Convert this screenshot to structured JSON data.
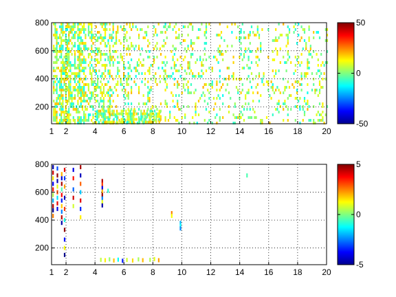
{
  "chart_data": [
    {
      "type": "heatmap",
      "title": "",
      "xlabel": "",
      "ylabel": "",
      "xlim": [
        1,
        20
      ],
      "ylim": [
        80,
        800
      ],
      "xticks": [
        1,
        2,
        4,
        6,
        8,
        10,
        12,
        14,
        16,
        18,
        20
      ],
      "yticks": [
        200,
        400,
        600,
        800
      ],
      "grid": true,
      "colormap": "jet",
      "colorbar": {
        "min": -50,
        "max": 50,
        "ticks": [
          -50,
          0,
          50
        ]
      },
      "description_of_content": "dense sparse field of near-zero values (cyan/green/yellow) over the whole range, densest at low x",
      "clusters": [
        {
          "x": [
            1.1,
            3.3
          ],
          "y": [
            85,
            800
          ],
          "density": 0.75
        },
        {
          "x": [
            3.3,
            5.0
          ],
          "y": [
            85,
            800
          ],
          "density": 0.55
        },
        {
          "x": [
            5.0,
            8.5
          ],
          "y": [
            85,
            800
          ],
          "density": 0.35
        },
        {
          "x": [
            4.0,
            8.5
          ],
          "y": [
            85,
            180
          ],
          "density": 0.8
        },
        {
          "x": [
            8.5,
            20.0
          ],
          "y": [
            85,
            800
          ],
          "density": 0.22
        }
      ],
      "value_range_shown": [
        -12,
        20
      ]
    },
    {
      "type": "heatmap",
      "title": "",
      "xlabel": "",
      "ylabel": "",
      "xlim": [
        1,
        20
      ],
      "ylim": [
        80,
        800
      ],
      "xticks": [
        1,
        2,
        4,
        6,
        8,
        10,
        12,
        14,
        16,
        18,
        20
      ],
      "yticks": [
        200,
        400,
        600,
        800
      ],
      "grid": true,
      "colormap": "jet",
      "colorbar": {
        "min": -5,
        "max": 5,
        "ticks": [
          -5,
          0,
          5
        ]
      },
      "points": [
        {
          "x": 1.1,
          "y": 780,
          "v": -4.5
        },
        {
          "x": 1.1,
          "y": 740,
          "v": 4.2
        },
        {
          "x": 1.1,
          "y": 700,
          "v": 1.5
        },
        {
          "x": 1.1,
          "y": 660,
          "v": -3.8
        },
        {
          "x": 1.1,
          "y": 620,
          "v": 3.5
        },
        {
          "x": 1.1,
          "y": 580,
          "v": 0.5
        },
        {
          "x": 1.1,
          "y": 540,
          "v": -2.0
        },
        {
          "x": 1.1,
          "y": 500,
          "v": 4.5
        },
        {
          "x": 1.1,
          "y": 470,
          "v": -4.8
        },
        {
          "x": 1.1,
          "y": 430,
          "v": 2.5
        },
        {
          "x": 1.4,
          "y": 770,
          "v": -3.0
        },
        {
          "x": 1.4,
          "y": 720,
          "v": 4.8
        },
        {
          "x": 1.4,
          "y": 680,
          "v": -4.5
        },
        {
          "x": 1.4,
          "y": 640,
          "v": 1.0
        },
        {
          "x": 1.4,
          "y": 600,
          "v": 3.0
        },
        {
          "x": 1.4,
          "y": 560,
          "v": -1.5
        },
        {
          "x": 1.4,
          "y": 520,
          "v": 4.0
        },
        {
          "x": 1.4,
          "y": 480,
          "v": -4.0
        },
        {
          "x": 1.7,
          "y": 730,
          "v": 2.0
        },
        {
          "x": 1.7,
          "y": 700,
          "v": -4.2
        },
        {
          "x": 1.7,
          "y": 660,
          "v": 4.6
        },
        {
          "x": 1.7,
          "y": 620,
          "v": -0.5
        },
        {
          "x": 1.7,
          "y": 580,
          "v": 3.8
        },
        {
          "x": 1.7,
          "y": 540,
          "v": -3.5
        },
        {
          "x": 1.7,
          "y": 500,
          "v": 1.8
        },
        {
          "x": 1.7,
          "y": 460,
          "v": -2.5
        },
        {
          "x": 1.7,
          "y": 420,
          "v": 4.4
        },
        {
          "x": 1.7,
          "y": 380,
          "v": -4.6
        },
        {
          "x": 1.9,
          "y": 760,
          "v": 4.0
        },
        {
          "x": 1.9,
          "y": 700,
          "v": -3.2
        },
        {
          "x": 1.9,
          "y": 640,
          "v": 2.2
        },
        {
          "x": 1.9,
          "y": 560,
          "v": -4.4
        },
        {
          "x": 1.9,
          "y": 480,
          "v": 3.2
        },
        {
          "x": 1.9,
          "y": 400,
          "v": -1.0
        },
        {
          "x": 1.9,
          "y": 330,
          "v": 4.8
        },
        {
          "x": 1.9,
          "y": 260,
          "v": -3.6
        },
        {
          "x": 1.9,
          "y": 200,
          "v": 1.2
        },
        {
          "x": 1.9,
          "y": 150,
          "v": -4.9
        },
        {
          "x": 2.5,
          "y": 760,
          "v": -4.0
        },
        {
          "x": 2.5,
          "y": 700,
          "v": 3.6
        },
        {
          "x": 2.5,
          "y": 620,
          "v": -2.8
        },
        {
          "x": 2.5,
          "y": 560,
          "v": 4.2
        },
        {
          "x": 2.5,
          "y": 500,
          "v": 0.8
        },
        {
          "x": 3.0,
          "y": 780,
          "v": 4.6
        },
        {
          "x": 3.0,
          "y": 720,
          "v": -4.4
        },
        {
          "x": 3.0,
          "y": 660,
          "v": 2.8
        },
        {
          "x": 3.0,
          "y": 600,
          "v": -1.8
        },
        {
          "x": 3.0,
          "y": 540,
          "v": 4.0
        },
        {
          "x": 3.0,
          "y": 480,
          "v": -3.4
        },
        {
          "x": 3.0,
          "y": 420,
          "v": 1.4
        },
        {
          "x": 4.5,
          "y": 680,
          "v": 4.5
        },
        {
          "x": 4.5,
          "y": 655,
          "v": 3.2
        },
        {
          "x": 4.5,
          "y": 630,
          "v": -4.0
        },
        {
          "x": 4.5,
          "y": 605,
          "v": 2.0
        },
        {
          "x": 4.5,
          "y": 580,
          "v": 4.8
        },
        {
          "x": 4.5,
          "y": 555,
          "v": -2.5
        },
        {
          "x": 4.5,
          "y": 530,
          "v": 1.0
        },
        {
          "x": 4.5,
          "y": 505,
          "v": -4.6
        },
        {
          "x": 4.9,
          "y": 610,
          "v": -0.8
        },
        {
          "x": 9.3,
          "y": 450,
          "v": 2.5
        },
        {
          "x": 9.3,
          "y": 430,
          "v": 1.2
        },
        {
          "x": 9.9,
          "y": 380,
          "v": -2.0
        },
        {
          "x": 9.9,
          "y": 360,
          "v": -1.2
        },
        {
          "x": 9.9,
          "y": 340,
          "v": -2.4
        },
        {
          "x": 14.5,
          "y": 720,
          "v": -0.5
        },
        {
          "x": 4.4,
          "y": 115,
          "v": 0.6
        },
        {
          "x": 4.7,
          "y": 112,
          "v": 1.4
        },
        {
          "x": 5.0,
          "y": 118,
          "v": 0.2
        },
        {
          "x": 5.3,
          "y": 110,
          "v": 1.8
        },
        {
          "x": 5.6,
          "y": 116,
          "v": -1.2
        },
        {
          "x": 5.9,
          "y": 108,
          "v": -3.5
        },
        {
          "x": 6.2,
          "y": 114,
          "v": 0.8
        },
        {
          "x": 6.6,
          "y": 110,
          "v": 1.6
        },
        {
          "x": 7.0,
          "y": 118,
          "v": 0.4
        },
        {
          "x": 7.3,
          "y": 112,
          "v": 1.9
        },
        {
          "x": 7.8,
          "y": 115,
          "v": 0.5
        },
        {
          "x": 8.1,
          "y": 120,
          "v": 1.0
        },
        {
          "x": 8.4,
          "y": 112,
          "v": 2.2
        }
      ]
    }
  ]
}
